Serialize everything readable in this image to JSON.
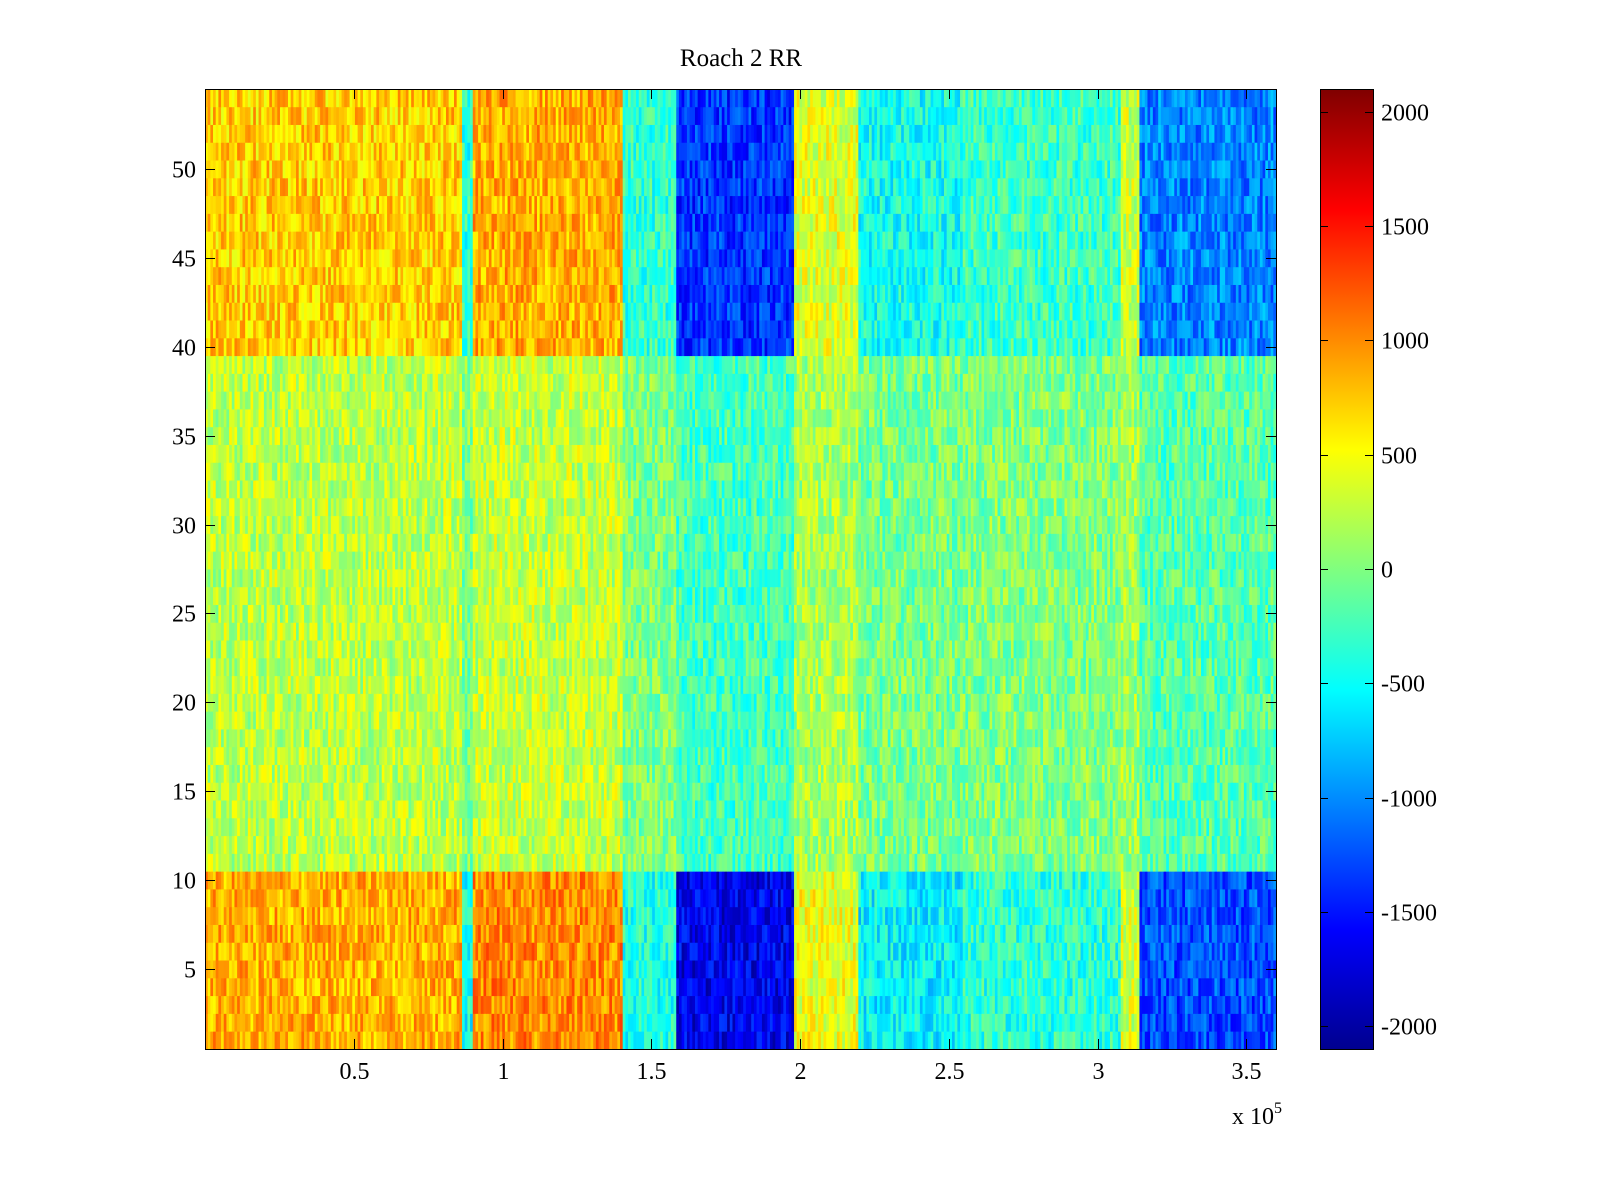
{
  "chart_data": {
    "type": "heatmap",
    "title": "Roach 2 RR",
    "xlabel": "",
    "ylabel": "",
    "x_multiplier_label": "x 10",
    "x_multiplier_exponent": "5",
    "xlim": [
      0,
      3.6
    ],
    "ylim": [
      0.5,
      54.5
    ],
    "x_ticks": [
      0.5,
      1,
      1.5,
      2,
      2.5,
      3,
      3.5
    ],
    "x_tick_labels": [
      "0.5",
      "1",
      "1.5",
      "2",
      "2.5",
      "3",
      "3.5"
    ],
    "y_ticks": [
      5,
      10,
      15,
      20,
      25,
      30,
      35,
      40,
      45,
      50
    ],
    "y_tick_labels": [
      "5",
      "10",
      "15",
      "20",
      "25",
      "30",
      "35",
      "40",
      "45",
      "50"
    ],
    "n_rows": 54,
    "colormap": "jet",
    "clim": [
      -2100,
      2100
    ],
    "colorbar_ticks": [
      2000,
      1500,
      1000,
      500,
      0,
      -500,
      -1000,
      -1500,
      -2000
    ],
    "colorbar_tick_labels": [
      "2000",
      "1500",
      "1000",
      "500",
      "0",
      "-500",
      "-1000",
      "-1500",
      "-2000"
    ],
    "column_segments": [
      {
        "x_range": [
          0.0,
          0.86
        ],
        "active_value": 850
      },
      {
        "x_range": [
          0.86,
          0.9
        ],
        "active_value": -450
      },
      {
        "x_range": [
          0.9,
          1.4
        ],
        "active_value": 1000
      },
      {
        "x_range": [
          1.4,
          1.58
        ],
        "active_value": -400
      },
      {
        "x_range": [
          1.58,
          1.98
        ],
        "active_value": -1650
      },
      {
        "x_range": [
          1.98,
          2.2
        ],
        "active_value": 450
      },
      {
        "x_range": [
          2.2,
          2.55
        ],
        "active_value": -550
      },
      {
        "x_range": [
          2.55,
          3.08
        ],
        "active_value": -350
      },
      {
        "x_range": [
          3.08,
          3.14
        ],
        "active_value": 350
      },
      {
        "x_range": [
          3.14,
          3.6
        ],
        "active_value": -1250
      }
    ],
    "row_bands": [
      {
        "y_range": [
          0.5,
          10.5
        ],
        "intensity": 1.0
      },
      {
        "y_range": [
          10.5,
          39.5
        ],
        "intensity": 0.0
      },
      {
        "y_range": [
          39.5,
          54.5
        ],
        "intensity": 0.8
      }
    ],
    "background_value": 100
  }
}
